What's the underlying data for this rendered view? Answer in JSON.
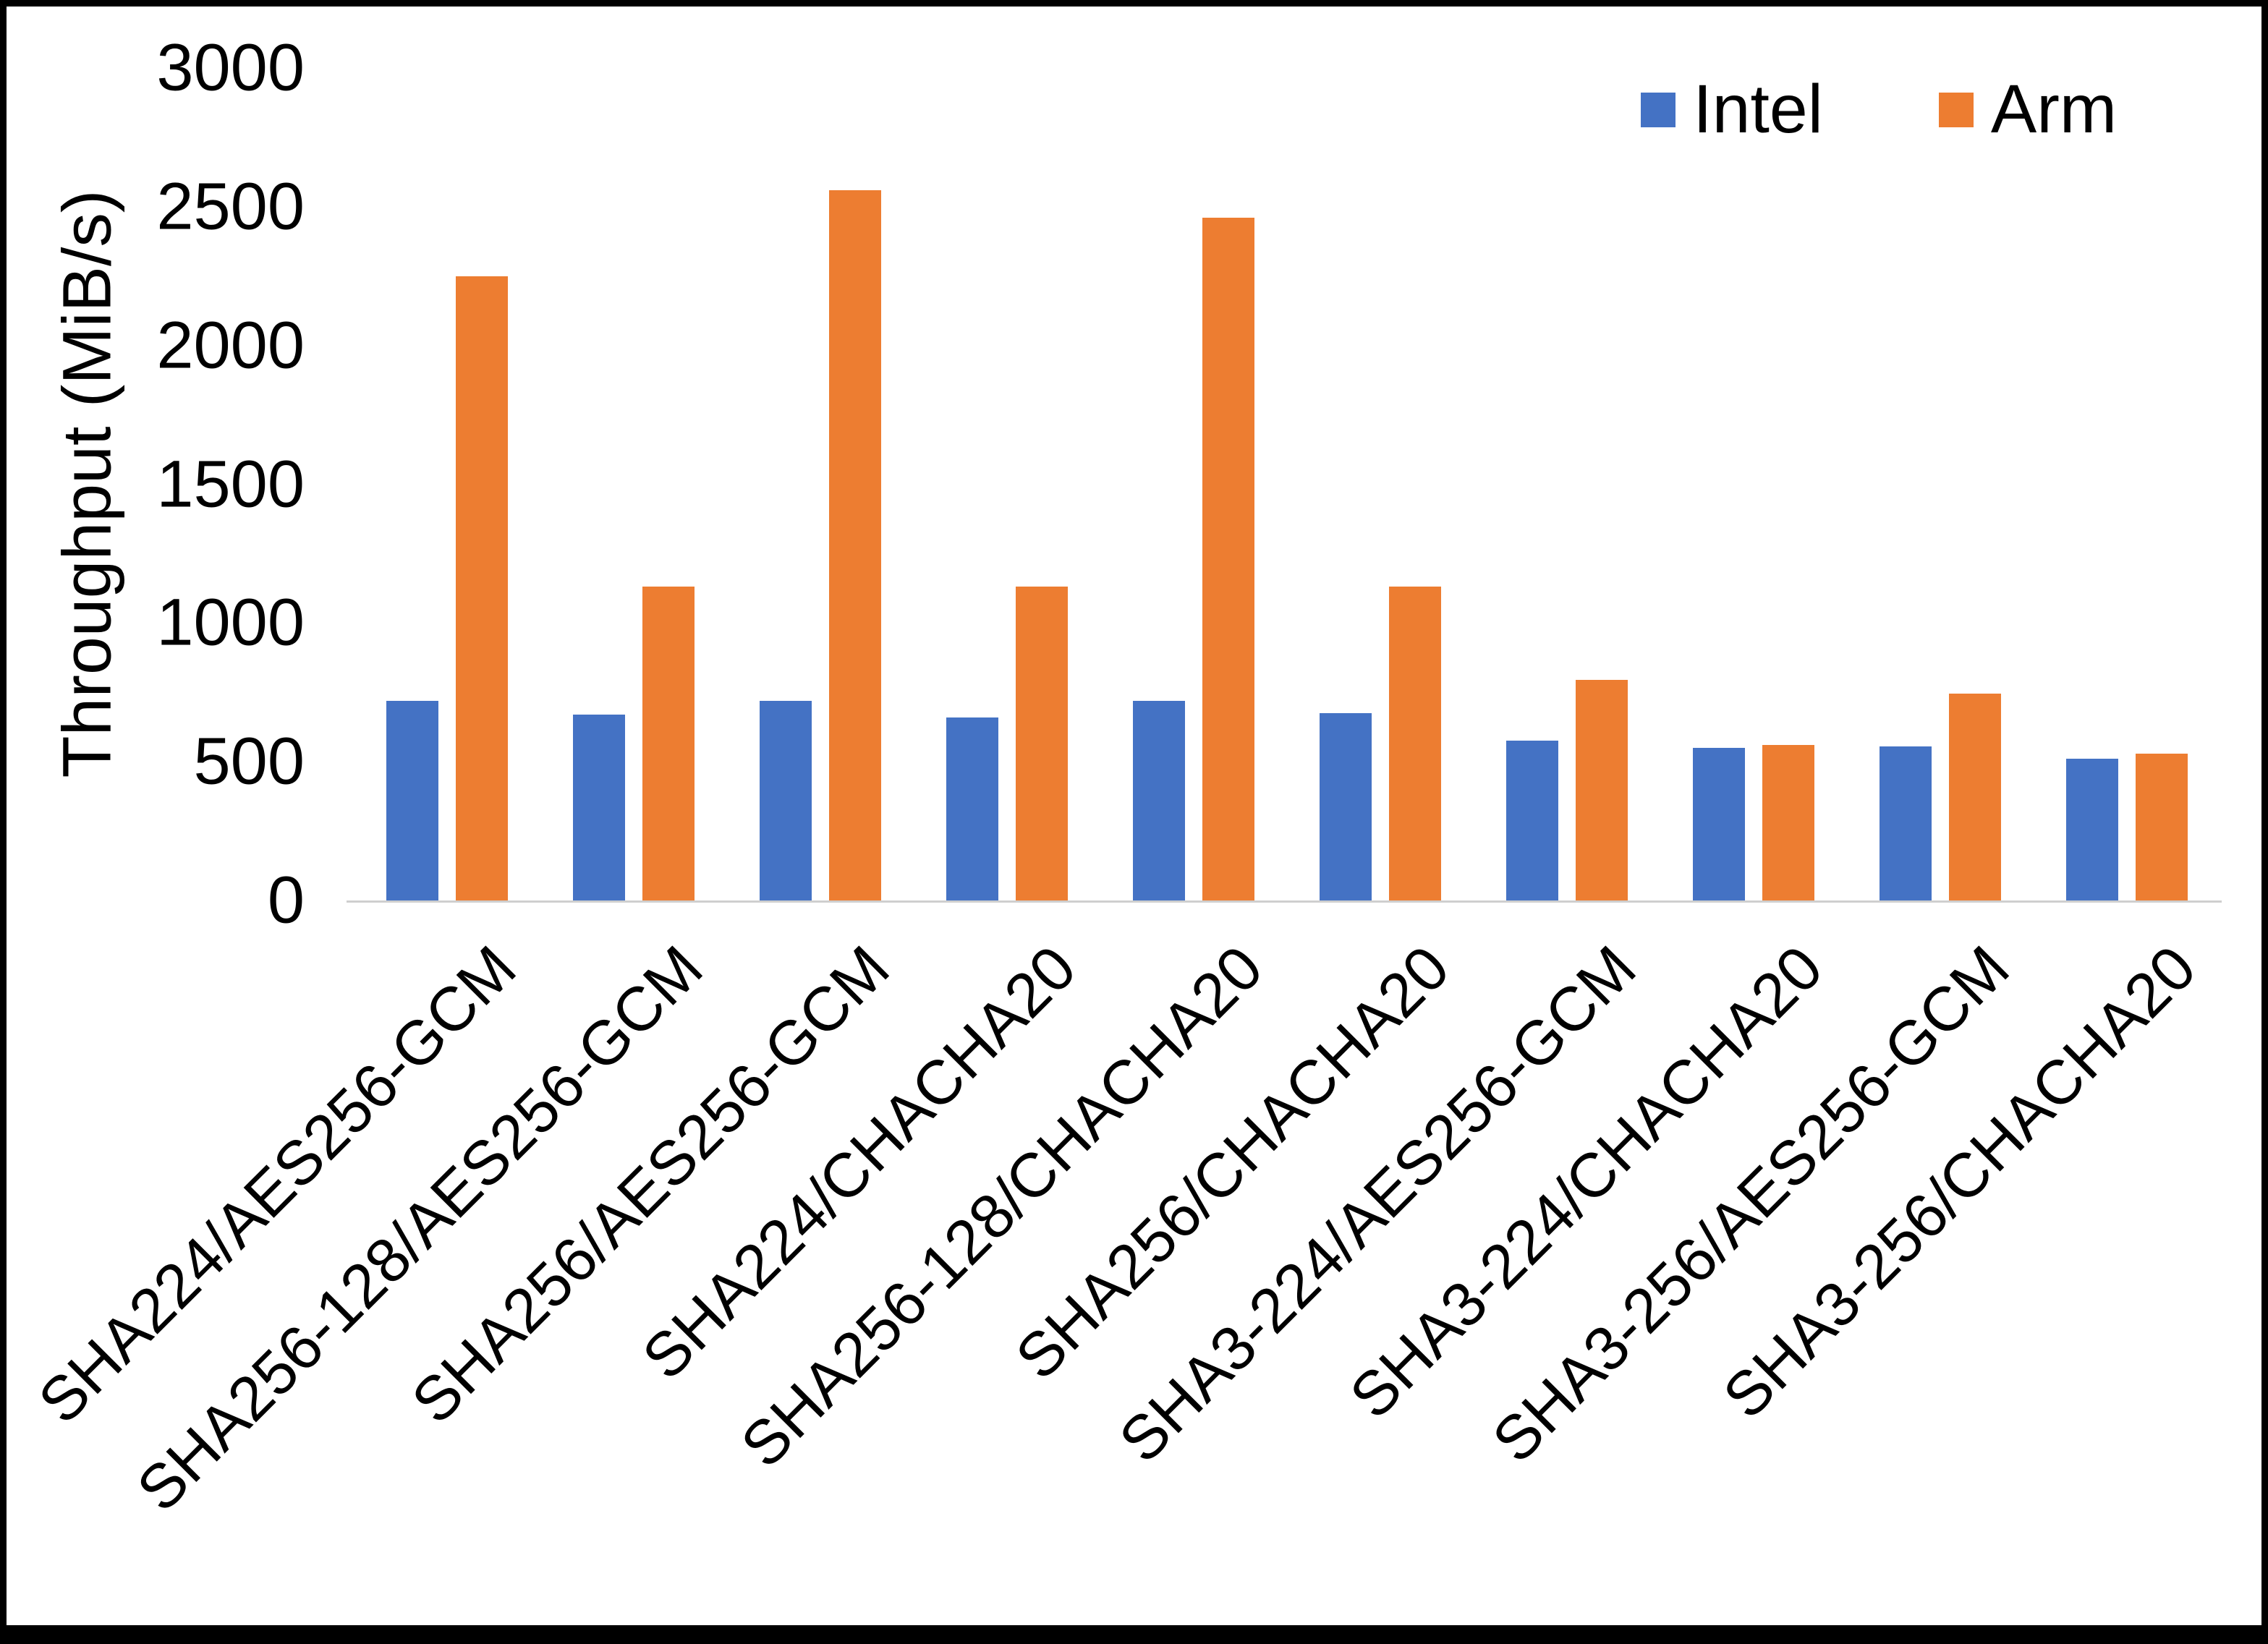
{
  "chart_data": {
    "type": "bar",
    "title": "",
    "xlabel": "",
    "ylabel": "Throughput (MiB/s)",
    "ylim": [
      0,
      3000
    ],
    "yticks": [
      0,
      500,
      1000,
      1500,
      2000,
      2500,
      3000
    ],
    "grid": false,
    "legend_position": "top-right",
    "categories": [
      "SHA224/AES256-GCM",
      "SHA256-128/AES256-GCM",
      "SHA256/AES256-GCM",
      "SHA224/CHACHA20",
      "SHA256-128/CHACHA20",
      "SHA256/CHACHA20",
      "SHA3-224/AES256-GCM",
      "SHA3-224/CHACHA20",
      "SHA3-256/AES256-GCM",
      "SHA3-256/CHACHA20"
    ],
    "series": [
      {
        "name": "Intel",
        "color": "#4472C4",
        "values": [
          720,
          670,
          720,
          660,
          720,
          675,
          575,
          550,
          555,
          510
        ]
      },
      {
        "name": "Arm",
        "color": "#ED7D31",
        "values": [
          2250,
          1130,
          2560,
          1130,
          2460,
          1130,
          795,
          560,
          745,
          530
        ]
      }
    ]
  }
}
